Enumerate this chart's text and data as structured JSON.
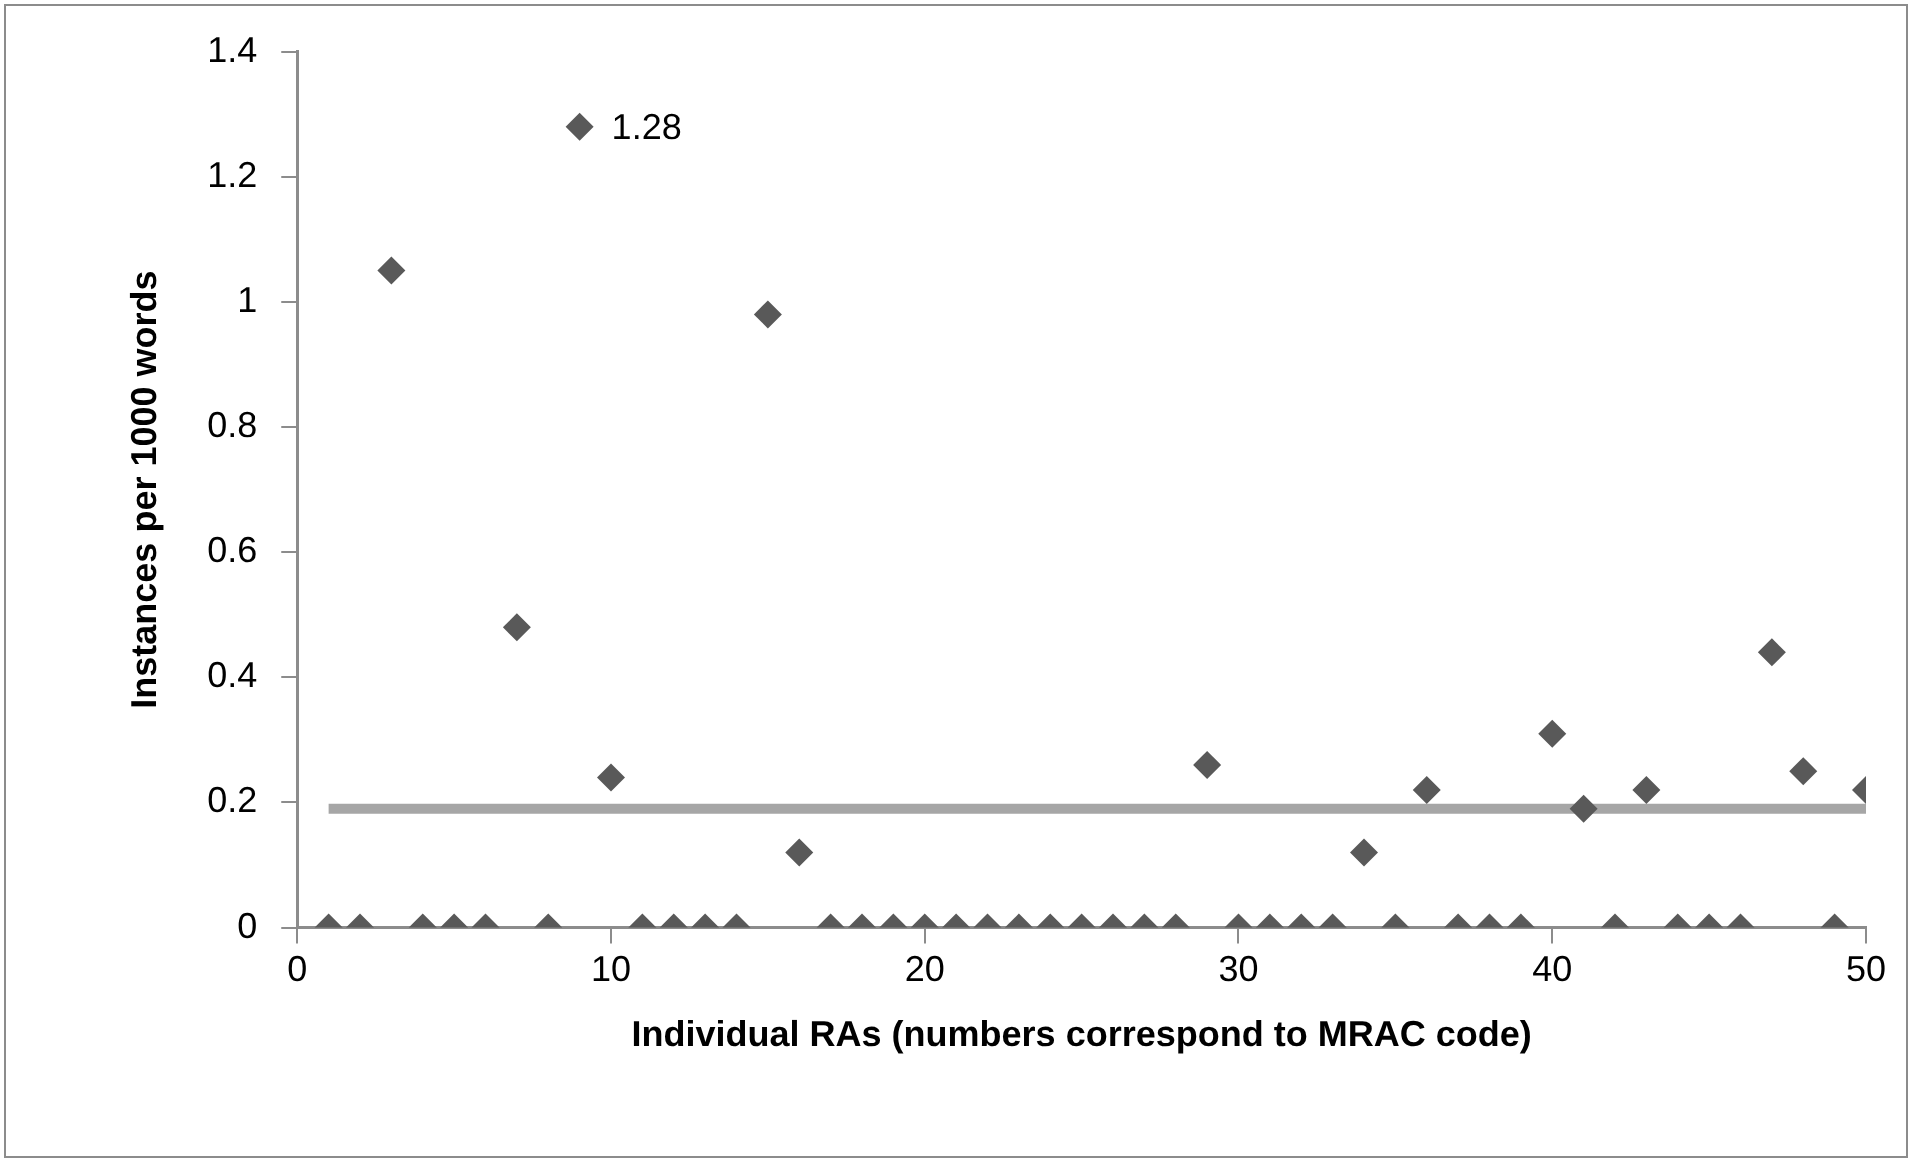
{
  "chart_data": {
    "type": "scatter",
    "xlabel": "Individual RAs (numbers correspond to MRAC code)",
    "ylabel": "Instances per 1000 words",
    "x": [
      1,
      2,
      3,
      4,
      5,
      6,
      7,
      8,
      9,
      10,
      11,
      12,
      13,
      14,
      15,
      16,
      17,
      18,
      19,
      20,
      21,
      22,
      23,
      24,
      25,
      26,
      27,
      28,
      29,
      30,
      31,
      32,
      33,
      34,
      35,
      36,
      37,
      38,
      39,
      40,
      41,
      42,
      43,
      44,
      45,
      46,
      47,
      48,
      49,
      50
    ],
    "series": [
      {
        "color": "#595959",
        "marker": "diamond",
        "values": [
          0,
          0,
          1.05,
          0,
          0,
          0,
          0.48,
          0,
          1.28,
          0.24,
          0,
          0,
          0,
          0,
          0.98,
          0.12,
          0,
          0,
          0,
          0,
          0,
          0,
          0,
          0,
          0,
          0,
          0,
          0,
          0.26,
          0,
          0,
          0,
          0,
          0.12,
          0,
          0.22,
          0,
          0,
          0,
          0.31,
          0.19,
          0,
          0.22,
          0,
          0,
          0,
          0.44,
          0.25,
          0,
          0.22
        ],
        "value_labels": [
          null,
          null,
          null,
          null,
          null,
          null,
          null,
          null,
          "1.28",
          null,
          null,
          null,
          null,
          null,
          null,
          null,
          null,
          null,
          null,
          null,
          null,
          null,
          null,
          null,
          null,
          null,
          null,
          null,
          null,
          null,
          null,
          null,
          null,
          null,
          null,
          null,
          null,
          null,
          null,
          null,
          null,
          null,
          null,
          null,
          null,
          null,
          null,
          null,
          null,
          null
        ]
      },
      {
        "type": "line",
        "color": "#a6a6a6",
        "marker": "none",
        "x": [
          1,
          50
        ],
        "values": [
          0.19,
          0.19
        ]
      }
    ],
    "xlim": [
      0,
      50
    ],
    "xticks": [
      0,
      10,
      20,
      30,
      40,
      50
    ],
    "ylim": [
      0,
      1.4
    ],
    "yticks": [
      0,
      0.2,
      0.4,
      0.6,
      0.8,
      1,
      1.2,
      1.4
    ],
    "grid": false,
    "legend": false
  }
}
